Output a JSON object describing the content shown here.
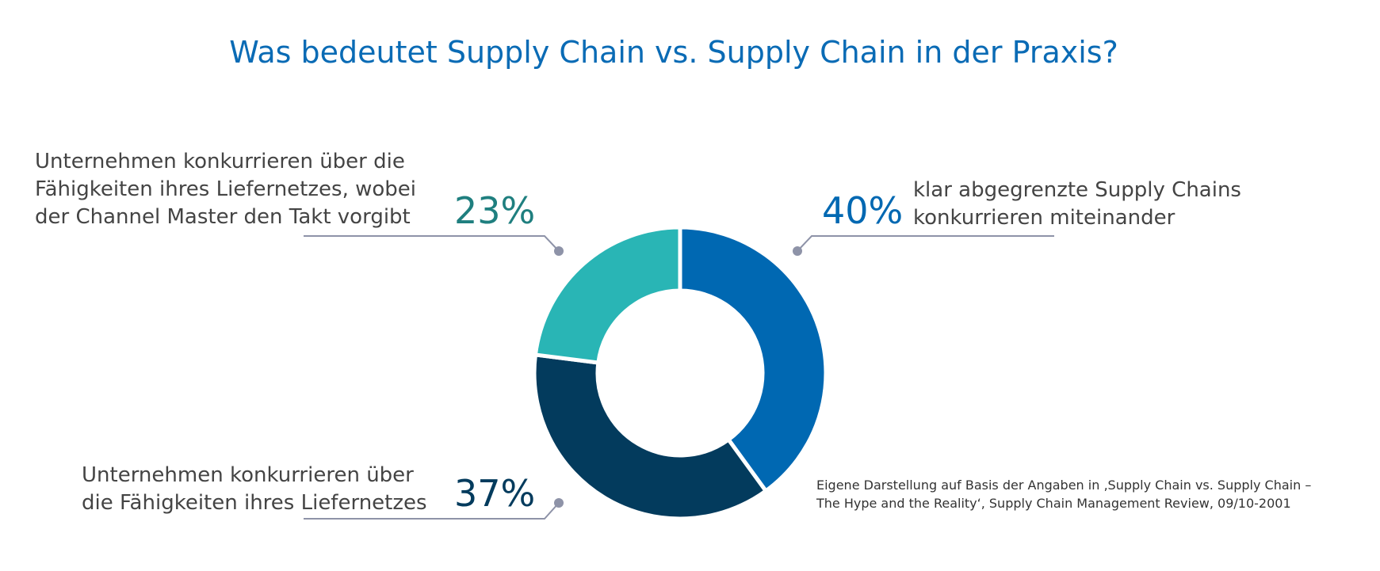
{
  "title": "Was bedeutet Supply Chain vs. Supply Chain in der Praxis?",
  "chart_data": {
    "type": "pie",
    "donut": true,
    "slices": [
      {
        "label": "klar abgegrenzte Supply Chains\nkonkurrieren miteinander",
        "value": 40,
        "value_label": "40%",
        "color": "#0068b2"
      },
      {
        "label": "Unternehmen konkurrieren über\ndie Fähigkeiten ihres Liefernetzes",
        "value": 37,
        "value_label": "37%",
        "color": "#033b5d"
      },
      {
        "label": "Unternehmen konkurrieren über die\nFähigkeiten ihres Liefernetzes, wobei\nder Channel Master den Takt vorgibt",
        "value": 23,
        "value_label": "23%",
        "color": "#29b5b5"
      }
    ],
    "value_label_colors": [
      "#0068b2",
      "#033b5d",
      "#1f7f7f"
    ]
  },
  "source": "Eigene Darstellung auf Basis der Angaben in ‚Supply Chain vs. Supply Chain –\n The Hype and the Reality‘, Supply Chain Management Review, 09/10-2001"
}
